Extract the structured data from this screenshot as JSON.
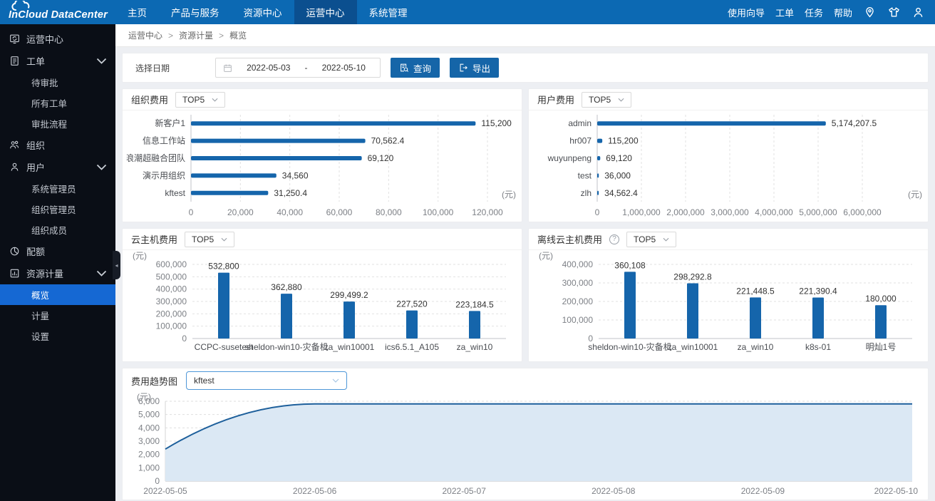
{
  "brand": {
    "logo_left": "InCloud",
    "logo_right": "DataCenter"
  },
  "topnav": {
    "items": [
      {
        "label": "主页",
        "active": false
      },
      {
        "label": "产品与服务",
        "active": false
      },
      {
        "label": "资源中心",
        "active": false
      },
      {
        "label": "运营中心",
        "active": true
      },
      {
        "label": "系统管理",
        "active": false
      }
    ],
    "links": [
      {
        "label": "使用向导"
      },
      {
        "label": "工单"
      },
      {
        "label": "任务"
      },
      {
        "label": "帮助"
      }
    ],
    "icons": [
      "map-pin-icon",
      "theme-shirt-icon",
      "account-icon"
    ]
  },
  "sidebar": {
    "groups": [
      {
        "label": "运营中心",
        "icon": "operations-center-icon"
      },
      {
        "label": "工单",
        "icon": "work-order-icon",
        "expanded": true,
        "children": [
          {
            "label": "待审批"
          },
          {
            "label": "所有工单"
          },
          {
            "label": "审批流程"
          }
        ]
      },
      {
        "label": "组织",
        "icon": "organization-icon"
      },
      {
        "label": "用户",
        "icon": "user-icon",
        "expanded": true,
        "children": [
          {
            "label": "系统管理员"
          },
          {
            "label": "组织管理员"
          },
          {
            "label": "组织成员"
          }
        ]
      },
      {
        "label": "配额",
        "icon": "quota-pie-icon"
      },
      {
        "label": "资源计量",
        "icon": "metering-icon",
        "expanded": true,
        "children": [
          {
            "label": "概览",
            "active": true
          },
          {
            "label": "计量"
          },
          {
            "label": "设置"
          }
        ]
      }
    ]
  },
  "breadcrumb": {
    "separator": ">",
    "items": [
      "运营中心",
      "资源计量",
      "概览"
    ]
  },
  "filters": {
    "date_label": "选择日期",
    "date_start": "2022-05-03",
    "date_separator": "-",
    "date_end": "2022-05-10",
    "query_label": "查询",
    "export_label": "导出"
  },
  "colors": {
    "topbar": "#0c69b3",
    "topbar_active": "#0b4f8f",
    "sidebar": "#0a0e16",
    "sidebar_active": "#1568d3",
    "bar": "#1565ab",
    "trend_line": "#1d5f9b",
    "trend_fill": "#dbe8f4"
  },
  "chart_data": [
    {
      "panel_title": "组织费用",
      "filter_value": "TOP5",
      "type": "bar",
      "orientation": "horizontal",
      "unit": "(元)",
      "categories": [
        "新客户1",
        "信息工作站",
        "浪潮超融合团队",
        "演示用组织",
        "kftest"
      ],
      "values": [
        115200,
        70562.4,
        69120,
        34560,
        31250.4
      ],
      "value_labels": [
        "115,200",
        "70,562.4",
        "69,120",
        "34,560",
        "31,250.4"
      ],
      "xlim": [
        0,
        120000
      ],
      "xtick_labels": [
        "0",
        "20,000",
        "40,000",
        "60,000",
        "80,000",
        "100,000",
        "120,000"
      ],
      "layout": {
        "label_col": 78,
        "right_pad": 42
      }
    },
    {
      "panel_title": "用户费用",
      "filter_value": "TOP5",
      "type": "bar",
      "orientation": "horizontal",
      "unit": "(元)",
      "categories": [
        "admin",
        "hr007",
        "wuyunpeng",
        "test",
        "zlh"
      ],
      "values": [
        5174207.5,
        115200,
        69120,
        36000,
        34562.4
      ],
      "value_labels": [
        "5,174,207.5",
        "115,200",
        "69,120",
        "36,000",
        "34,562.4"
      ],
      "xlim": [
        0,
        6000000
      ],
      "xtick_labels": [
        "0",
        "1,000,000",
        "2,000,000",
        "3,000,000",
        "4,000,000",
        "5,000,000",
        "6,000,000"
      ],
      "layout": {
        "label_col": 78,
        "right_pad": 86
      }
    },
    {
      "panel_title": "云主机费用",
      "filter_value": "TOP5",
      "type": "bar",
      "orientation": "vertical",
      "unit": "(元)",
      "categories": [
        "CCPC-susetest",
        "sheldon-win10-灾备机",
        "za_win10001",
        "ics6.5.1_A105",
        "za_win10"
      ],
      "values": [
        532800,
        362880,
        299499.2,
        227520,
        223184.5
      ],
      "value_labels": [
        "532,800",
        "362,880",
        "299,499.2",
        "227,520",
        "223,184.5"
      ],
      "ylim": [
        0,
        600000
      ],
      "ytick_labels": [
        "0",
        "100,000",
        "200,000",
        "300,000",
        "400,000",
        "500,000",
        "600,000"
      ],
      "layout": {
        "label_col": 82
      }
    },
    {
      "panel_title": "离线云主机费用",
      "has_help": true,
      "filter_value": "TOP5",
      "type": "bar",
      "orientation": "vertical",
      "unit": "(元)",
      "categories": [
        "sheldon-win10-灾备机",
        "za_win10001",
        "za_win10",
        "k8s-01",
        "明灿1号"
      ],
      "values": [
        360108,
        298292.8,
        221448.5,
        221390.4,
        180000
      ],
      "value_labels": [
        "360,108",
        "298,292.8",
        "221,448.5",
        "221,390.4",
        "180,000"
      ],
      "ylim": [
        0,
        400000
      ],
      "ytick_labels": [
        "0",
        "100,000",
        "200,000",
        "300,000",
        "400,000"
      ],
      "layout": {
        "label_col": 82
      }
    },
    {
      "panel_title": "费用趋势图",
      "selected_option": "kftest",
      "type": "area",
      "unit": "(元)",
      "x": [
        "2022-05-05",
        "2022-05-06",
        "2022-05-07",
        "2022-05-08",
        "2022-05-09",
        "2022-05-10"
      ],
      "values": [
        2400,
        5800,
        5800,
        5800,
        5800,
        5800
      ],
      "ylim": [
        0,
        6000
      ],
      "ytick_labels": [
        "0",
        "1,000",
        "2,000",
        "3,000",
        "4,000",
        "5,000",
        "6,000"
      ]
    }
  ]
}
